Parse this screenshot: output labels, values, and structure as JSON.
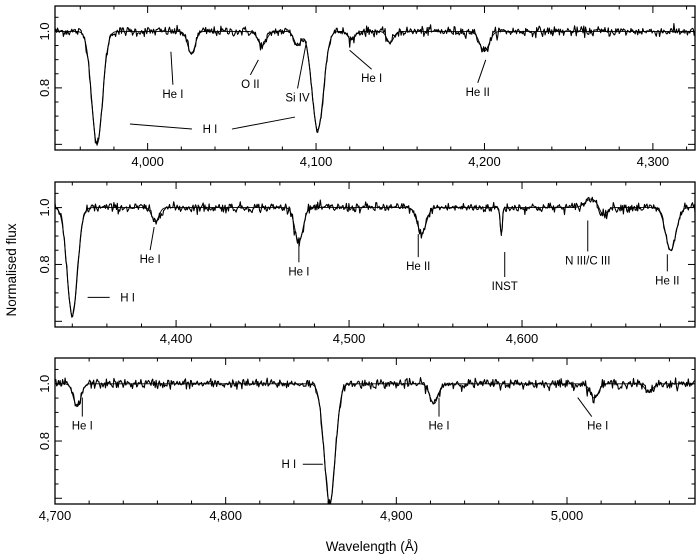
{
  "chart_data": {
    "type": "line",
    "xlabel": "Wavelength (Å)",
    "ylabel": "Normalised flux",
    "panels": [
      {
        "xlim": [
          3945,
          4325
        ],
        "ylim": [
          0.58,
          1.09
        ],
        "xticks": [
          4000,
          4100,
          4200,
          4300
        ],
        "xtick_labels": [
          "4,000",
          "4,100",
          "4,200",
          "4,300"
        ],
        "yticks": [
          0.8,
          1.0
        ],
        "ytick_labels": [
          "0.8",
          "1.0"
        ],
        "lines": [
          {
            "c": 3970,
            "d": 0.4,
            "w": 3.2
          },
          {
            "c": 4026,
            "d": 0.08,
            "w": 2.2
          },
          {
            "c": 4068,
            "d": 0.05,
            "w": 2.5
          },
          {
            "c": 4089,
            "d": 0.05,
            "w": 2.0
          },
          {
            "c": 4101,
            "d": 0.35,
            "w": 3.4
          },
          {
            "c": 4121,
            "d": 0.03,
            "w": 2.0
          },
          {
            "c": 4144,
            "d": 0.04,
            "w": 2.0
          },
          {
            "c": 4200,
            "d": 0.07,
            "w": 2.8
          }
        ],
        "annotations": [
          {
            "text": "He I",
            "x": 4015,
            "y": 0.765
          },
          {
            "text": "O II",
            "x": 4061,
            "y": 0.8
          },
          {
            "text": "Si IV",
            "x": 4089,
            "y": 0.752
          },
          {
            "text": "He I",
            "x": 4133,
            "y": 0.82
          },
          {
            "text": "He II",
            "x": 4196,
            "y": 0.772
          },
          {
            "text": "H I",
            "x": 4037,
            "y": 0.64
          }
        ]
      },
      {
        "xlim": [
          4330,
          4700
        ],
        "ylim": [
          0.58,
          1.09
        ],
        "xticks": [
          4400,
          4500,
          4600
        ],
        "xtick_labels": [
          "4,400",
          "4,500",
          "4,600"
        ],
        "yticks": [
          0.8,
          1.0
        ],
        "ytick_labels": [
          "0.8",
          "1.0"
        ],
        "lines": [
          {
            "c": 4340,
            "d": 0.38,
            "w": 3.0
          },
          {
            "c": 4388,
            "d": 0.05,
            "w": 2.0
          },
          {
            "c": 4471,
            "d": 0.12,
            "w": 2.4
          },
          {
            "c": 4542,
            "d": 0.09,
            "w": 2.6
          },
          {
            "c": 4588,
            "d": 0.1,
            "w": 0.6
          },
          {
            "c": 4640,
            "d": -0.03,
            "w": 3.5
          },
          {
            "c": 4647,
            "d": 0.03,
            "w": 2.0
          },
          {
            "c": 4686,
            "d": 0.15,
            "w": 3.0
          }
        ],
        "annotations": [
          {
            "text": "He I",
            "x": 4385,
            "y": 0.805
          },
          {
            "text": "He I",
            "x": 4471,
            "y": 0.762
          },
          {
            "text": "He II",
            "x": 4540,
            "y": 0.78
          },
          {
            "text": "INST",
            "x": 4590,
            "y": 0.71
          },
          {
            "text": "N III/C III",
            "x": 4638,
            "y": 0.8
          },
          {
            "text": "He II",
            "x": 4684,
            "y": 0.73
          },
          {
            "text": "H I",
            "x": 4372,
            "y": 0.67
          }
        ]
      },
      {
        "xlim": [
          4700,
          5075
        ],
        "ylim": [
          0.58,
          1.09
        ],
        "xticks": [
          4700,
          4800,
          4900,
          5000
        ],
        "xtick_labels": [
          "4,700",
          "4,800",
          "4,900",
          "5,000"
        ],
        "yticks": [
          0.8,
          1.0
        ],
        "ytick_labels": [
          "0.8",
          "1.0"
        ],
        "lines": [
          {
            "c": 4713,
            "d": 0.08,
            "w": 2.2
          },
          {
            "c": 4861,
            "d": 0.42,
            "w": 3.2
          },
          {
            "c": 4922,
            "d": 0.07,
            "w": 2.4
          },
          {
            "c": 5016,
            "d": 0.05,
            "w": 2.4
          },
          {
            "c": 5048,
            "d": 0.03,
            "w": 2.2
          }
        ],
        "annotations": [
          {
            "text": "He I",
            "x": 4716,
            "y": 0.84
          },
          {
            "text": "He I",
            "x": 4925,
            "y": 0.84
          },
          {
            "text": "He I",
            "x": 5018,
            "y": 0.84
          },
          {
            "text": "H I",
            "x": 4837,
            "y": 0.705
          }
        ]
      }
    ]
  }
}
